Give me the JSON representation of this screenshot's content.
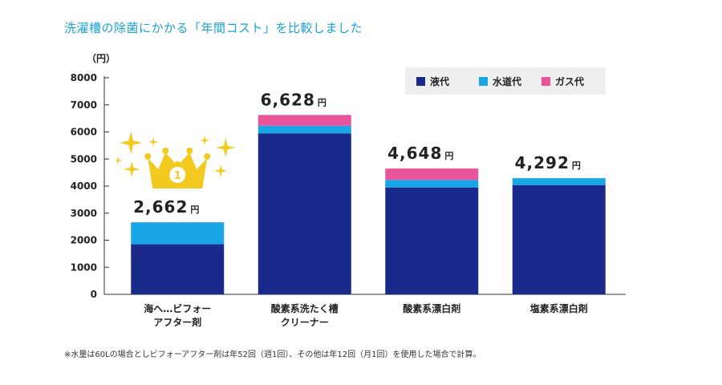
{
  "page": {
    "title": "洗濯槽の除菌にかかる「年間コスト」を比較しました",
    "footnote": "※水量は60Lの場合としビフォーアフター剤は年52回（週1回）、その他は年12回（月1回）を使用した場合で計算。"
  },
  "chart_data": {
    "type": "bar",
    "stacked": true,
    "title": "洗濯槽の除菌にかかる「年間コスト」を比較しました",
    "yunit": "（円）",
    "ylim": [
      0,
      8000
    ],
    "yticks": [
      0,
      1000,
      2000,
      3000,
      4000,
      5000,
      6000,
      7000,
      8000
    ],
    "ytick_labels": [
      "0",
      "1000",
      "2000",
      "3000",
      "4000",
      "5000",
      "6000",
      "7000",
      "8000"
    ],
    "categories": [
      [
        "海へ…ビフォー",
        "アフター剤"
      ],
      [
        "酸素系洗たく槽",
        "クリーナー"
      ],
      [
        "酸素系漂白剤"
      ],
      [
        "塩素系漂白剤"
      ]
    ],
    "series": [
      {
        "name": "液代",
        "color": "#1a2a8a",
        "values": [
          1850,
          5950,
          3950,
          4030
        ]
      },
      {
        "name": "水道代",
        "color": "#18a6e6",
        "values": [
          812,
          278,
          278,
          262
        ]
      },
      {
        "name": "ガス代",
        "color": "#e8549a",
        "values": [
          0,
          400,
          420,
          0
        ]
      }
    ],
    "totals": [
      "2,662",
      "6,628",
      "4,648",
      "4,292"
    ],
    "total_unit": "円",
    "legend_position": "top-right",
    "grid": false,
    "badge": {
      "category_index": 0,
      "text": "1",
      "icon": "crown-icon",
      "color": "#f2c91e"
    }
  }
}
